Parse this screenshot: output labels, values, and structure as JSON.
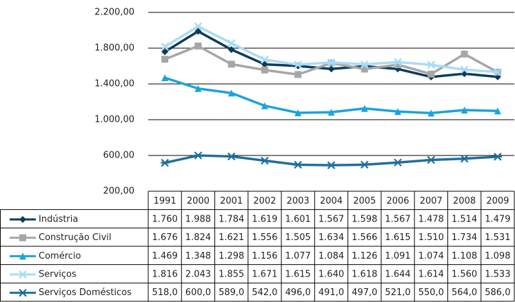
{
  "chart_data": {
    "type": "line",
    "categories": [
      "1991",
      "2000",
      "2001",
      "2002",
      "2003",
      "2004",
      "2005",
      "2006",
      "2007",
      "2008",
      "2009"
    ],
    "ylim": [
      200,
      2200
    ],
    "yticks": [
      {
        "value": 200,
        "label": "200,00"
      },
      {
        "value": 600,
        "label": "600,00"
      },
      {
        "value": 1000,
        "label": "1.000,00"
      },
      {
        "value": 1400,
        "label": "1.400,00"
      },
      {
        "value": 1800,
        "label": "1.800,00"
      },
      {
        "value": 2200,
        "label": "2.200,00"
      }
    ],
    "grid": true,
    "series": [
      {
        "name": "Indústria",
        "color": "#0d3b5c",
        "marker": "diamond",
        "values": [
          1760,
          1988,
          1784,
          1619,
          1601,
          1567,
          1598,
          1567,
          1478,
          1514,
          1479
        ],
        "value_labels": [
          "1.760",
          "1.988",
          "1.784",
          "1.619",
          "1.601",
          "1.567",
          "1.598",
          "1.567",
          "1.478",
          "1.514",
          "1.479"
        ]
      },
      {
        "name": "Construção Civil",
        "color": "#a6a6a6",
        "marker": "square",
        "values": [
          1676,
          1824,
          1621,
          1556,
          1505,
          1634,
          1566,
          1615,
          1510,
          1734,
          1531
        ],
        "value_labels": [
          "1.676",
          "1.824",
          "1.621",
          "1.556",
          "1.505",
          "1.634",
          "1.566",
          "1.615",
          "1.510",
          "1.734",
          "1.531"
        ]
      },
      {
        "name": "Comércio",
        "color": "#1aa3e0",
        "marker": "triangle",
        "values": [
          1469,
          1348,
          1298,
          1156,
          1077,
          1084,
          1126,
          1091,
          1074,
          1108,
          1098
        ],
        "value_labels": [
          "1.469",
          "1.348",
          "1.298",
          "1.156",
          "1.077",
          "1.084",
          "1.126",
          "1.091",
          "1.074",
          "1.108",
          "1.098"
        ]
      },
      {
        "name": "Serviços",
        "color": "#a8dcf5",
        "marker": "x",
        "values": [
          1816,
          2043,
          1855,
          1671,
          1615,
          1640,
          1618,
          1644,
          1614,
          1560,
          1533
        ],
        "value_labels": [
          "1.816",
          "2.043",
          "1.855",
          "1.671",
          "1.615",
          "1.640",
          "1.618",
          "1.644",
          "1.614",
          "1.560",
          "1.533"
        ]
      },
      {
        "name": "Serviços Domésticos",
        "color": "#1f6f99",
        "marker": "asterisk",
        "values": [
          518,
          600,
          589,
          542,
          496,
          491,
          497,
          521,
          550,
          564,
          586
        ],
        "value_labels": [
          "518,0",
          "600,0",
          "589,0",
          "542,0",
          "496,0",
          "491,0",
          "497,0",
          "521,0",
          "550,0",
          "564,0",
          "586,0"
        ]
      }
    ]
  }
}
